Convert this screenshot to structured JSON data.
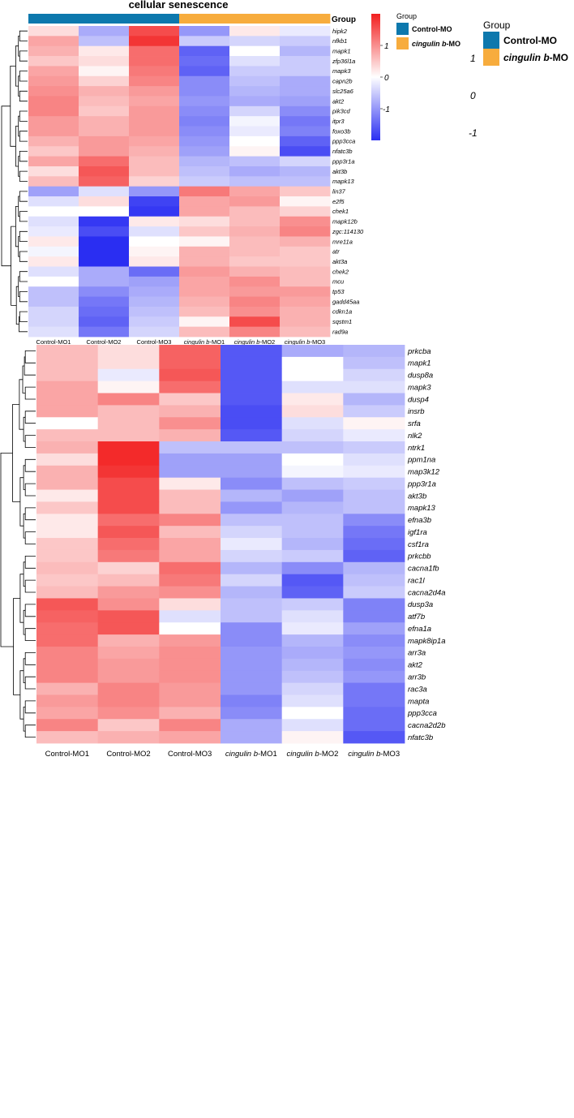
{
  "chart_data": [
    {
      "type": "heatmap",
      "title": "cellular senescence",
      "group_label": "Group",
      "columns": [
        "Control-MO1",
        "Control-MO2",
        "Control-MO3",
        "cingulin b-MO1",
        "cingulin b-MO2",
        "cingulin b-MO3"
      ],
      "column_groups": [
        "Control-MO",
        "Control-MO",
        "Control-MO",
        "cingulin b-MO",
        "cingulin b-MO",
        "cingulin b-MO"
      ],
      "rows": [
        "hipk2",
        "nfkb1",
        "mapk1",
        "zfp36l1a",
        "mapk3",
        "capn2b",
        "slc25a6",
        "akt2",
        "pik3cd",
        "itpr3",
        "foxo3b",
        "ppp3cca",
        "nfatc3b",
        "ppp3r1a",
        "akt3b",
        "mapk13",
        "lin37",
        "e2f5",
        "chek1",
        "mapk12b",
        "zgc:114130",
        "mre11a",
        "atr",
        "akt3a",
        "chek2",
        "mcu",
        "tp53",
        "gadd45aa",
        "cdkn1a",
        "sqstm1",
        "rad9a"
      ],
      "values": [
        [
          0.3,
          -0.8,
          1.6,
          -1.0,
          0.2,
          -0.2
        ],
        [
          0.8,
          -0.6,
          1.8,
          -0.5,
          -0.4,
          -0.5
        ],
        [
          0.7,
          0.2,
          1.3,
          -1.5,
          0.0,
          -0.7
        ],
        [
          0.5,
          0.3,
          1.3,
          -1.4,
          -0.3,
          -0.5
        ],
        [
          0.8,
          0.1,
          1.2,
          -1.5,
          -0.5,
          -0.5
        ],
        [
          0.9,
          0.4,
          1.1,
          -1.1,
          -0.6,
          -0.8
        ],
        [
          1.0,
          0.7,
          0.9,
          -1.1,
          -0.7,
          -0.8
        ],
        [
          1.1,
          0.6,
          0.8,
          -1.0,
          -0.8,
          -0.9
        ],
        [
          1.1,
          0.5,
          0.9,
          -1.1,
          -0.4,
          -1.1
        ],
        [
          0.9,
          0.7,
          0.9,
          -1.2,
          -0.1,
          -1.3
        ],
        [
          0.9,
          0.7,
          0.9,
          -1.1,
          -0.2,
          -1.2
        ],
        [
          0.7,
          0.9,
          0.8,
          -1.0,
          0.0,
          -1.5
        ],
        [
          0.5,
          0.9,
          0.7,
          -0.9,
          0.1,
          -1.7
        ],
        [
          0.8,
          1.3,
          0.6,
          -0.7,
          -0.6,
          -0.4
        ],
        [
          0.3,
          1.5,
          0.6,
          -0.6,
          -0.8,
          -0.7
        ],
        [
          0.6,
          1.4,
          0.4,
          -0.5,
          -0.6,
          -0.6
        ],
        [
          -0.9,
          -0.3,
          -1.0,
          1.2,
          0.8,
          0.5
        ],
        [
          -0.3,
          0.3,
          -1.8,
          0.8,
          0.9,
          0.1
        ],
        [
          0.0,
          0.0,
          -1.9,
          0.8,
          0.6,
          0.4
        ],
        [
          -0.3,
          -1.9,
          0.2,
          0.3,
          0.6,
          1.0
        ],
        [
          -0.2,
          -1.7,
          -0.3,
          0.5,
          0.7,
          1.1
        ],
        [
          0.2,
          -2.0,
          0.0,
          0.1,
          0.6,
          0.7
        ],
        [
          -0.1,
          -2.0,
          0.1,
          0.7,
          0.6,
          0.5
        ],
        [
          0.2,
          -2.0,
          0.2,
          0.7,
          0.5,
          0.5
        ],
        [
          -0.3,
          -0.8,
          -1.4,
          0.9,
          0.7,
          0.6
        ],
        [
          0.0,
          -0.8,
          -0.9,
          0.8,
          1.0,
          0.6
        ],
        [
          -0.6,
          -1.1,
          -0.8,
          0.8,
          0.9,
          0.9
        ],
        [
          -0.6,
          -1.3,
          -0.7,
          0.7,
          1.1,
          0.8
        ],
        [
          -0.4,
          -1.4,
          -0.6,
          0.6,
          1.0,
          0.7
        ],
        [
          -0.4,
          -1.5,
          -0.5,
          0.1,
          1.6,
          0.7
        ],
        [
          -0.3,
          -1.3,
          -0.4,
          0.6,
          1.1,
          0.6
        ]
      ],
      "colorbar": {
        "ticks": [
          1,
          0,
          -1
        ],
        "low_color": "#2a2ef2",
        "mid_color": "#ffffff",
        "high_color": "#f21f1f",
        "range": [
          -2,
          2
        ]
      },
      "group_colors": {
        "Control-MO": "#0d78ad",
        "cingulin b-MO": "#f7ac3d"
      },
      "legend": {
        "title": "Group",
        "entries": [
          "Control-MO",
          "cingulin b-MO"
        ],
        "placement": "top-right"
      },
      "row_dendrogram": true,
      "column_dendrogram": false
    },
    {
      "type": "heatmap",
      "title": "",
      "columns": [
        "Control-MO1",
        "Control-MO2",
        "Control-MO3",
        "cingulin b-MO1",
        "cingulin b-MO2",
        "cingulin b-MO3"
      ],
      "rows": [
        "prkcba",
        "mapk1",
        "dusp8a",
        "mapk3",
        "dusp4",
        "insrb",
        "srfa",
        "nlk2",
        "ntrk1",
        "ppm1na",
        "map3k12",
        "ppp3r1a",
        "akt3b",
        "mapk13",
        "efna3b",
        "igf1ra",
        "csf1ra",
        "prkcbb",
        "cacna1fb",
        "rac1l",
        "cacna2d4a",
        "dusp3a",
        "atf7b",
        "efna1a",
        "mapk8ip1a",
        "arr3a",
        "akt2",
        "arr3b",
        "rac3a",
        "mapta",
        "ppp3cca",
        "cacna2d2b",
        "nfatc3b"
      ],
      "values": [
        [
          0.6,
          0.3,
          1.4,
          -1.6,
          -0.8,
          -0.7
        ],
        [
          0.6,
          0.3,
          1.4,
          -1.6,
          0.0,
          -0.6
        ],
        [
          0.6,
          -0.2,
          1.5,
          -1.6,
          0.0,
          -0.4
        ],
        [
          0.8,
          0.1,
          1.3,
          -1.6,
          -0.3,
          -0.3
        ],
        [
          0.8,
          1.1,
          0.5,
          -1.6,
          0.2,
          -0.7
        ],
        [
          0.8,
          0.6,
          0.7,
          -1.7,
          0.3,
          -0.5
        ],
        [
          0.0,
          0.6,
          1.0,
          -1.7,
          -0.3,
          0.1
        ],
        [
          0.6,
          0.6,
          0.7,
          -1.6,
          -0.4,
          -0.2
        ],
        [
          0.7,
          1.9,
          -0.6,
          -0.6,
          -0.6,
          -0.5
        ],
        [
          0.3,
          1.9,
          -0.9,
          -0.9,
          0.0,
          -0.3
        ],
        [
          0.7,
          1.8,
          -0.9,
          -0.9,
          -0.1,
          -0.2
        ],
        [
          0.7,
          1.6,
          0.2,
          -1.1,
          -0.6,
          -0.5
        ],
        [
          0.2,
          1.6,
          0.6,
          -0.7,
          -0.9,
          -0.6
        ],
        [
          0.5,
          1.6,
          0.6,
          -1.0,
          -0.7,
          -0.6
        ],
        [
          0.2,
          1.3,
          1.1,
          -0.6,
          -0.6,
          -1.1
        ],
        [
          0.2,
          1.5,
          0.6,
          -0.4,
          -0.6,
          -1.3
        ],
        [
          0.5,
          1.3,
          0.8,
          -0.2,
          -0.7,
          -1.4
        ],
        [
          0.5,
          1.2,
          0.8,
          -0.4,
          -0.5,
          -1.5
        ],
        [
          0.6,
          0.4,
          1.3,
          -0.7,
          -1.1,
          -0.7
        ],
        [
          0.5,
          0.6,
          1.2,
          -0.4,
          -1.6,
          -0.6
        ],
        [
          0.6,
          0.9,
          1.0,
          -0.7,
          -1.5,
          -0.5
        ],
        [
          1.5,
          1.0,
          0.3,
          -0.6,
          -0.5,
          -1.2
        ],
        [
          1.4,
          1.5,
          -0.3,
          -0.6,
          -0.3,
          -1.2
        ],
        [
          1.3,
          1.5,
          0.0,
          -1.1,
          -0.2,
          -0.9
        ],
        [
          1.3,
          0.7,
          0.9,
          -1.1,
          -0.7,
          -1.1
        ],
        [
          1.1,
          0.8,
          1.0,
          -1.0,
          -0.8,
          -1.0
        ],
        [
          1.1,
          0.9,
          1.0,
          -1.0,
          -0.7,
          -1.1
        ],
        [
          1.1,
          0.9,
          1.0,
          -1.0,
          -0.6,
          -1.0
        ],
        [
          0.7,
          1.1,
          0.9,
          -1.0,
          -0.4,
          -1.3
        ],
        [
          0.9,
          1.1,
          0.9,
          -1.2,
          -0.3,
          -1.3
        ],
        [
          0.8,
          1.0,
          0.7,
          -1.1,
          0.0,
          -1.4
        ],
        [
          1.1,
          0.5,
          1.1,
          -0.8,
          -0.3,
          -1.4
        ],
        [
          0.6,
          0.7,
          0.8,
          -0.8,
          0.1,
          -1.6
        ]
      ],
      "colorbar": {
        "ticks": [
          1,
          0,
          -1
        ],
        "range": [
          -2,
          2
        ]
      },
      "legend": {
        "title": "Group",
        "entries": [
          "Control-MO",
          "cingulin b-MO"
        ],
        "placement": "top-right"
      },
      "row_dendrogram": true,
      "column_dendrogram": false
    }
  ]
}
